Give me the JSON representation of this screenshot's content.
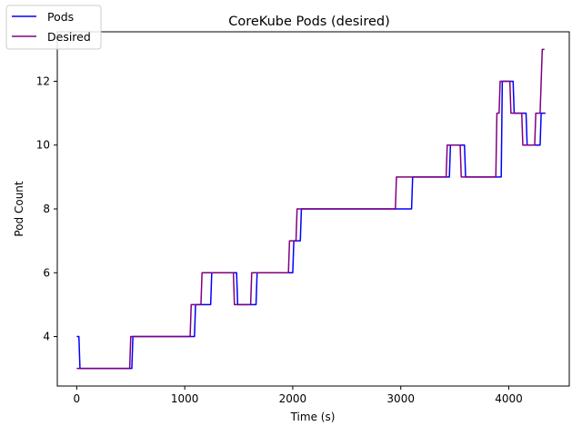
{
  "chart_data": {
    "type": "line",
    "title": "CoreKube Pods (desired)",
    "xlabel": "Time (s)",
    "ylabel": "Pod Count",
    "xlim": [
      -180,
      4560
    ],
    "ylim": [
      2.45,
      13.55
    ],
    "xticks": [
      0,
      1000,
      2000,
      3000,
      4000
    ],
    "yticks": [
      4,
      6,
      8,
      10,
      12
    ],
    "grid": false,
    "legend_position": "top-left",
    "series": [
      {
        "name": "Pods",
        "color": "#0000ff",
        "x": [
          0,
          20,
          30,
          510,
          520,
          1090,
          1100,
          1240,
          1250,
          1480,
          1490,
          1660,
          1670,
          2000,
          2010,
          2070,
          2080,
          3100,
          3110,
          3450,
          3460,
          3590,
          3600,
          3930,
          3940,
          4040,
          4050,
          4160,
          4170,
          4290,
          4300,
          4340
        ],
        "y": [
          4,
          4,
          3,
          3,
          4,
          4,
          5,
          5,
          6,
          6,
          5,
          5,
          6,
          6,
          7,
          7,
          8,
          8,
          9,
          9,
          10,
          10,
          9,
          9,
          12,
          12,
          11,
          11,
          10,
          10,
          11,
          11
        ]
      },
      {
        "name": "Desired",
        "color": "#800080",
        "x": [
          0,
          490,
          500,
          1050,
          1060,
          1150,
          1160,
          1450,
          1460,
          1610,
          1620,
          1960,
          1970,
          2030,
          2040,
          2950,
          2960,
          3420,
          3430,
          3550,
          3560,
          3880,
          3890,
          3910,
          3920,
          4010,
          4020,
          4120,
          4130,
          4240,
          4250,
          4290,
          4300,
          4310,
          4330
        ],
        "y": [
          3,
          3,
          4,
          4,
          5,
          5,
          6,
          6,
          5,
          5,
          6,
          6,
          7,
          7,
          8,
          8,
          9,
          9,
          10,
          10,
          9,
          9,
          11,
          11,
          12,
          12,
          11,
          11,
          10,
          10,
          11,
          11,
          12,
          13,
          13
        ]
      }
    ]
  }
}
